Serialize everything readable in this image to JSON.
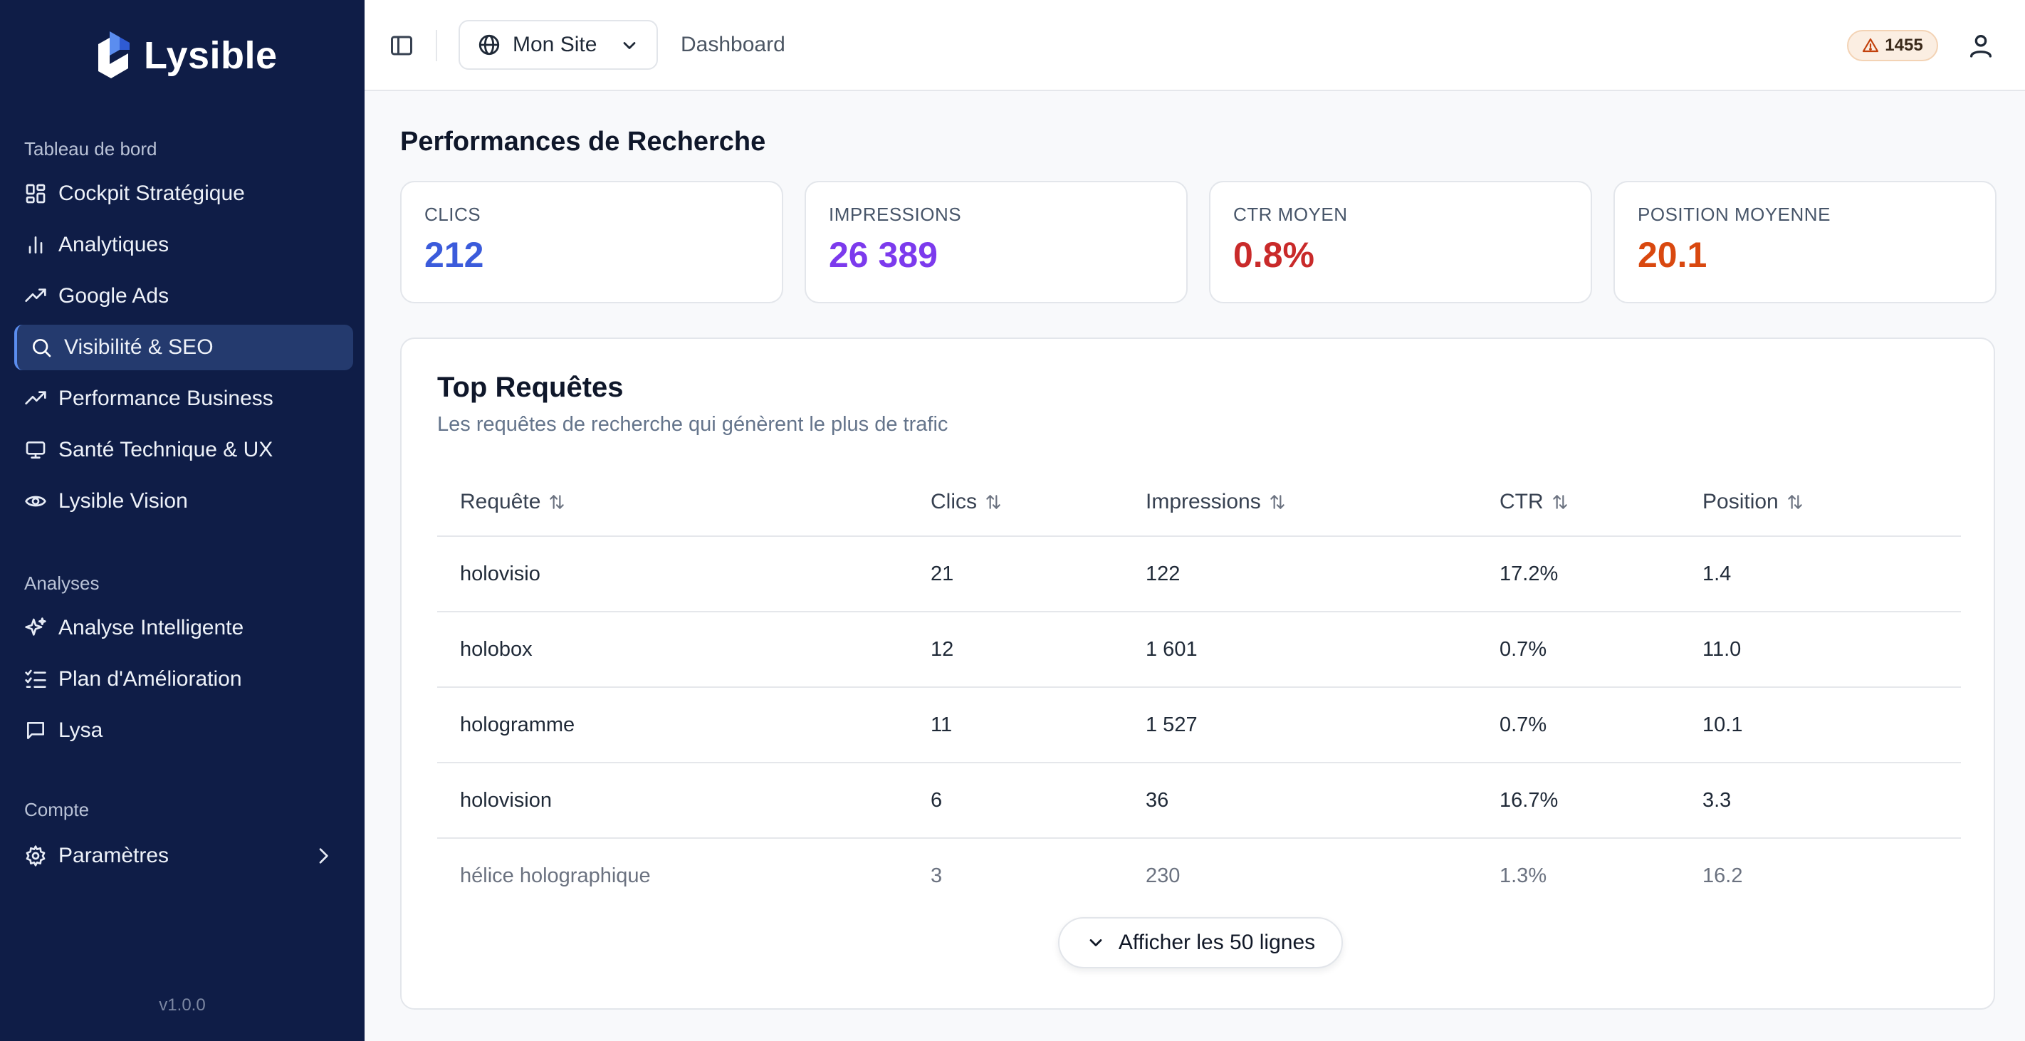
{
  "app": {
    "name": "Lysible",
    "version": "v1.0.0"
  },
  "sidebar": {
    "sections": [
      {
        "label": "Tableau de bord",
        "items": [
          {
            "label": "Cockpit Stratégique",
            "icon": "dashboard-grid-icon"
          },
          {
            "label": "Analytiques",
            "icon": "bar-chart-icon"
          },
          {
            "label": "Google Ads",
            "icon": "trending-up-icon"
          },
          {
            "label": "Visibilité & SEO",
            "icon": "search-icon",
            "active": true
          },
          {
            "label": "Performance Business",
            "icon": "trending-up-icon"
          },
          {
            "label": "Santé Technique & UX",
            "icon": "monitor-icon"
          },
          {
            "label": "Lysible Vision",
            "icon": "eye-icon"
          }
        ]
      },
      {
        "label": "Analyses",
        "items": [
          {
            "label": "Analyse Intelligente",
            "icon": "sparkles-icon"
          },
          {
            "label": "Plan d'Amélioration",
            "icon": "checklist-icon"
          },
          {
            "label": "Lysa",
            "icon": "chat-icon"
          }
        ]
      },
      {
        "label": "Compte",
        "items": [
          {
            "label": "Paramètres",
            "icon": "gear-icon",
            "has_submenu": true
          }
        ]
      }
    ]
  },
  "header": {
    "site_selector": {
      "value": "Mon Site",
      "icon": "globe-icon"
    },
    "breadcrumb": "Dashboard",
    "alerts_count": "1455"
  },
  "main": {
    "title": "Performances de Recherche",
    "stats": [
      {
        "label": "CLICS",
        "value": "212",
        "color": "#3b5bdb"
      },
      {
        "label": "IMPRESSIONS",
        "value": "26 389",
        "color": "#7c3aed"
      },
      {
        "label": "CTR MOYEN",
        "value": "0.8%",
        "color": "#c92a2a"
      },
      {
        "label": "POSITION MOYENNE",
        "value": "20.1",
        "color": "#d9480f"
      }
    ],
    "top_queries": {
      "title": "Top Requêtes",
      "subtitle": "Les requêtes de recherche qui génèrent le plus de trafic",
      "columns": [
        "Requête",
        "Clics",
        "Impressions",
        "CTR",
        "Position"
      ],
      "rows": [
        [
          "holovisio",
          "21",
          "122",
          "17.2%",
          "1.4"
        ],
        [
          "holobox",
          "12",
          "1 601",
          "0.7%",
          "11.0"
        ],
        [
          "hologramme",
          "11",
          "1 527",
          "0.7%",
          "10.1"
        ],
        [
          "holovision",
          "6",
          "36",
          "16.7%",
          "3.3"
        ],
        [
          "hélice holographique",
          "3",
          "230",
          "1.3%",
          "16.2"
        ]
      ],
      "show_all_label": "Afficher les 50 lignes"
    }
  }
}
